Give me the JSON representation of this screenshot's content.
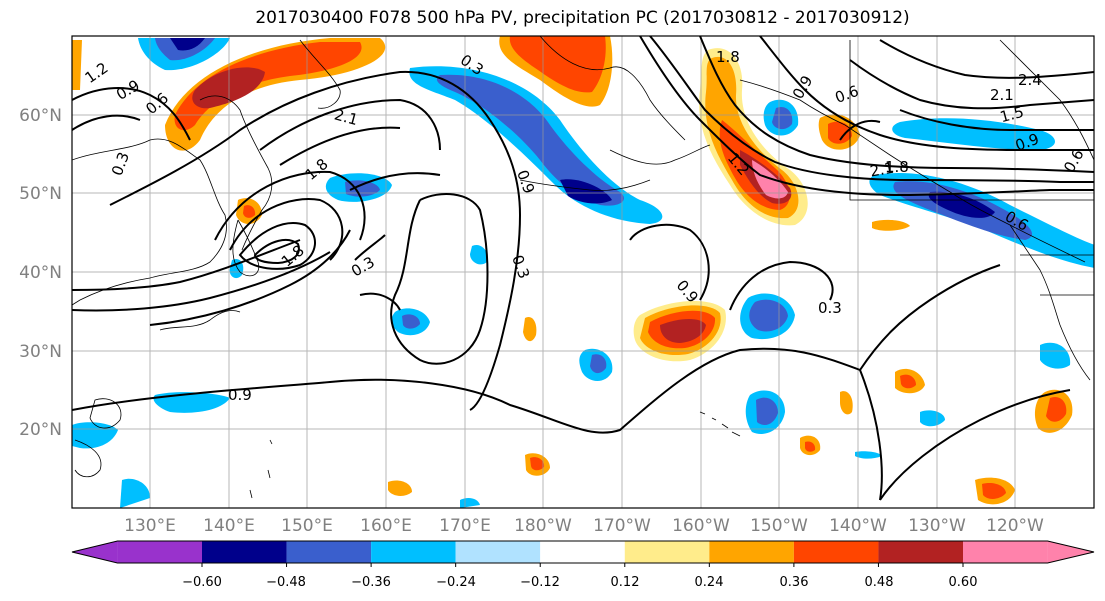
{
  "title": "2017030400 F078 500 hPa PV, precipitation PC (2017030812 - 2017030912)",
  "axes": {
    "lat_labels": [
      "60°N",
      "50°N",
      "40°N",
      "30°N",
      "20°N"
    ],
    "lon_labels": [
      "130°E",
      "140°E",
      "150°E",
      "160°E",
      "170°E",
      "180°W",
      "170°W",
      "160°W",
      "150°W",
      "140°W",
      "130°W",
      "120°W"
    ]
  },
  "colorbar": {
    "ticks": [
      "−0.60",
      "−0.48",
      "−0.36",
      "−0.24",
      "−0.12",
      "0.12",
      "0.24",
      "0.36",
      "0.48",
      "0.60"
    ],
    "levels": [
      -0.6,
      -0.48,
      -0.36,
      -0.24,
      -0.12,
      0.12,
      0.24,
      0.36,
      0.48,
      0.6
    ],
    "colors": [
      "#9932cc",
      "#00008b",
      "#3a5fcd",
      "#00bfff",
      "#b0e2ff",
      "#ffffff",
      "#ffec8b",
      "#ffa500",
      "#ff4500",
      "#b22222",
      "#ff82ab"
    ]
  },
  "contour_labels": [
    "1.2",
    "0.9",
    "0.6",
    "0.3",
    "2.1",
    "1.8",
    "0.9",
    "0.3",
    "0.3",
    "0.9",
    "0.3",
    "1.8",
    "0.9",
    "0.6",
    "2.1",
    "2.4",
    "1.5",
    "0.9",
    "0.6",
    "1.2",
    "2.1",
    "1.8",
    "0.6",
    "0.3",
    "0.9",
    "1.8"
  ]
}
